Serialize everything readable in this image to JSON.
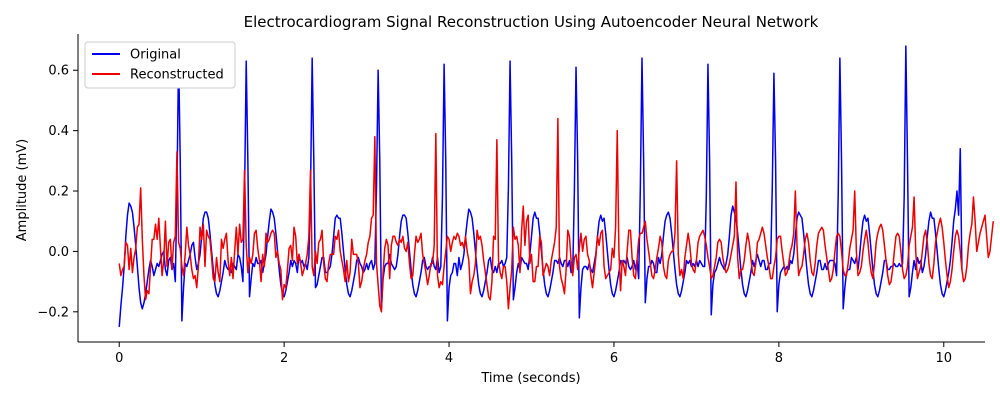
{
  "chart_data": {
    "type": "line",
    "title": "Electrocardiogram Signal Reconstruction Using Autoencoder Neural Network",
    "xlabel": "Time (seconds)",
    "ylabel": "Amplitude (mV)",
    "xlim": [
      -0.5,
      10.5
    ],
    "ylim": [
      -0.3,
      0.72
    ],
    "xticks": [
      0,
      2,
      4,
      6,
      8,
      10
    ],
    "yticks": [
      -0.2,
      0.0,
      0.2,
      0.4,
      0.6
    ],
    "xtick_labels": [
      "0",
      "2",
      "4",
      "6",
      "8",
      "10"
    ],
    "ytick_labels": [
      "−0.2",
      "0.0",
      "0.2",
      "0.4",
      "0.6"
    ],
    "grid": false,
    "legend_position": "top-left",
    "sampling_interval": 0.02,
    "series": [
      {
        "name": "Original",
        "color": "#0000ee",
        "values": [
          -0.25,
          -0.18,
          -0.12,
          -0.05,
          0.05,
          0.12,
          0.16,
          0.15,
          0.13,
          0.08,
          0.02,
          -0.05,
          -0.12,
          -0.17,
          -0.19,
          -0.17,
          -0.14,
          -0.1,
          -0.06,
          -0.03,
          -0.05,
          -0.08,
          -0.06,
          -0.04,
          -0.05,
          -0.03,
          -0.01,
          0.0,
          -0.06,
          -0.08,
          -0.03,
          -0.02,
          -0.06,
          -0.04,
          -0.1,
          0.2,
          0.65,
          0.3,
          -0.23,
          -0.12,
          -0.04,
          -0.05,
          -0.03,
          -0.01,
          0.02,
          0.03,
          -0.02,
          -0.06,
          -0.04,
          -0.01,
          0.05,
          0.11,
          0.13,
          0.13,
          0.11,
          0.06,
          0.0,
          -0.06,
          -0.11,
          -0.14,
          -0.15,
          -0.13,
          -0.1,
          -0.07,
          -0.03,
          -0.05,
          -0.06,
          -0.06,
          -0.07,
          -0.04,
          -0.05,
          -0.06,
          -0.01,
          -0.02,
          -0.05,
          -0.1,
          0.19,
          0.63,
          0.3,
          -0.15,
          -0.09,
          -0.04,
          -0.05,
          -0.02,
          -0.04,
          -0.04,
          -0.03,
          -0.07,
          -0.04,
          -0.01,
          0.05,
          0.1,
          0.14,
          0.13,
          0.11,
          0.06,
          0.0,
          -0.06,
          -0.11,
          -0.14,
          -0.15,
          -0.13,
          -0.1,
          -0.07,
          -0.03,
          -0.05,
          -0.03,
          -0.04,
          -0.07,
          -0.01,
          -0.04,
          -0.03,
          -0.05,
          -0.04,
          -0.06,
          -0.02,
          0.2,
          0.64,
          0.3,
          -0.12,
          -0.11,
          -0.08,
          -0.05,
          -0.02,
          -0.02,
          -0.07,
          -0.07,
          -0.06,
          -0.05,
          -0.01,
          0.05,
          0.11,
          0.12,
          0.11,
          0.11,
          0.06,
          0.0,
          -0.06,
          -0.11,
          -0.14,
          -0.15,
          -0.13,
          -0.1,
          -0.07,
          -0.03,
          -0.02,
          -0.04,
          -0.05,
          -0.07,
          -0.06,
          -0.04,
          -0.06,
          -0.04,
          -0.03,
          -0.06,
          -0.04,
          0.21,
          0.6,
          0.3,
          -0.19,
          -0.09,
          -0.05,
          -0.04,
          -0.04,
          -0.01,
          -0.04,
          -0.05,
          -0.06,
          -0.05,
          -0.01,
          0.05,
          0.1,
          0.12,
          0.12,
          0.11,
          0.06,
          0.0,
          -0.06,
          -0.11,
          -0.14,
          -0.15,
          -0.13,
          -0.1,
          -0.07,
          -0.03,
          -0.02,
          -0.05,
          -0.06,
          -0.05,
          -0.05,
          -0.02,
          -0.05,
          -0.06,
          -0.02,
          -0.07,
          -0.05,
          0.18,
          0.62,
          0.3,
          -0.23,
          -0.12,
          -0.08,
          -0.07,
          -0.04,
          -0.04,
          -0.08,
          -0.02,
          -0.06,
          -0.04,
          -0.01,
          0.05,
          0.1,
          0.14,
          0.13,
          0.11,
          0.06,
          0.0,
          -0.06,
          -0.11,
          -0.14,
          -0.15,
          -0.13,
          -0.1,
          -0.07,
          -0.03,
          -0.02,
          -0.06,
          -0.07,
          -0.05,
          -0.07,
          -0.04,
          -0.04,
          -0.03,
          -0.05,
          -0.04,
          -0.02,
          0.21,
          0.63,
          0.3,
          -0.16,
          -0.12,
          -0.07,
          -0.04,
          -0.06,
          -0.02,
          -0.03,
          -0.04,
          -0.04,
          -0.06,
          -0.01,
          0.05,
          0.11,
          0.13,
          0.11,
          0.11,
          0.06,
          0.0,
          -0.06,
          -0.11,
          -0.14,
          -0.15,
          -0.13,
          -0.1,
          -0.07,
          -0.03,
          -0.03,
          -0.04,
          -0.02,
          -0.04,
          -0.05,
          -0.03,
          -0.03,
          -0.05,
          -0.03,
          -0.07,
          -0.07,
          0.2,
          0.61,
          0.3,
          -0.22,
          -0.12,
          -0.06,
          -0.05,
          -0.05,
          -0.06,
          -0.04,
          -0.06,
          -0.07,
          -0.04,
          -0.01,
          0.05,
          0.1,
          0.12,
          0.1,
          0.11,
          0.06,
          0.0,
          -0.06,
          -0.11,
          -0.14,
          -0.15,
          -0.13,
          -0.1,
          -0.07,
          -0.03,
          -0.04,
          -0.03,
          -0.04,
          -0.02,
          -0.05,
          -0.06,
          -0.05,
          -0.03,
          -0.06,
          -0.03,
          -0.09,
          0.21,
          0.64,
          0.3,
          -0.17,
          -0.09,
          -0.05,
          -0.05,
          -0.03,
          -0.04,
          -0.07,
          -0.07,
          -0.02,
          -0.04,
          -0.01,
          0.05,
          0.1,
          0.12,
          0.13,
          0.11,
          0.06,
          0.0,
          -0.06,
          -0.11,
          -0.14,
          -0.15,
          -0.13,
          -0.1,
          -0.07,
          -0.03,
          -0.04,
          -0.03,
          -0.05,
          -0.04,
          -0.05,
          -0.03,
          -0.05,
          -0.03,
          -0.04,
          -0.05,
          -0.05,
          0.18,
          0.62,
          0.3,
          -0.21,
          -0.11,
          -0.07,
          -0.06,
          -0.04,
          -0.02,
          -0.04,
          -0.05,
          -0.06,
          -0.04,
          -0.01,
          0.05,
          0.12,
          0.15,
          0.13,
          0.11,
          0.06,
          0.0,
          -0.06,
          -0.11,
          -0.14,
          -0.15,
          -0.13,
          -0.1,
          -0.07,
          -0.03,
          -0.05,
          -0.03,
          -0.01,
          -0.03,
          -0.05,
          -0.03,
          -0.03,
          -0.06,
          -0.06,
          -0.04,
          -0.04,
          0.21,
          0.59,
          0.3,
          -0.2,
          -0.11,
          -0.07,
          -0.06,
          -0.05,
          -0.06,
          -0.05,
          -0.06,
          -0.03,
          -0.04,
          -0.01,
          0.05,
          0.11,
          0.13,
          0.12,
          0.11,
          0.06,
          0.0,
          -0.06,
          -0.11,
          -0.14,
          -0.15,
          -0.13,
          -0.1,
          -0.07,
          -0.03,
          -0.03,
          -0.06,
          -0.06,
          -0.04,
          -0.06,
          -0.04,
          -0.03,
          -0.03,
          -0.03,
          -0.04,
          -0.08,
          0.19,
          0.64,
          0.3,
          -0.19,
          -0.12,
          -0.07,
          -0.06,
          -0.06,
          -0.02,
          -0.03,
          -0.04,
          -0.02,
          -0.06,
          -0.01,
          0.05,
          0.1,
          0.12,
          0.1,
          0.11,
          0.06,
          0.0,
          -0.06,
          -0.11,
          -0.14,
          -0.15,
          -0.13,
          -0.1,
          -0.07,
          -0.03,
          -0.03,
          -0.06,
          -0.06,
          -0.05,
          -0.05,
          -0.04,
          -0.05,
          -0.05,
          -0.04,
          -0.05,
          -0.04,
          0.18,
          0.68,
          0.3,
          -0.15,
          -0.12,
          -0.07,
          -0.03,
          -0.06,
          -0.02,
          -0.04,
          -0.03,
          -0.07,
          -0.05,
          -0.01,
          0.05,
          0.1,
          0.13,
          0.11,
          0.11,
          0.06,
          0.0,
          -0.06,
          -0.11,
          -0.14,
          -0.15,
          -0.13,
          -0.1,
          -0.07,
          -0.03,
          0.03,
          0.1,
          0.14,
          0.2,
          0.12,
          0.34,
          -0.06
        ],
        "smoothing": "none"
      },
      {
        "name": "Reconstructed",
        "color": "#ee0000",
        "values": [
          -0.04,
          -0.08,
          -0.06,
          -0.05,
          0.03,
          0.02,
          -0.06,
          0.01,
          -0.07,
          -0.02,
          0.01,
          0.08,
          0.09,
          0.21,
          0.04,
          -0.08,
          -0.16,
          -0.13,
          -0.14,
          -0.05,
          0.04,
          0.04,
          0.09,
          0.04,
          0.11,
          0.01,
          -0.08,
          -0.03,
          0.1,
          -0.05,
          0.03,
          0.04,
          -0.06,
          0.03,
          0.05,
          0.33,
          0.03,
          0.01,
          -0.05,
          -0.08,
          -0.01,
          0.08,
          0.02,
          -0.01,
          -0.06,
          -0.09,
          -0.08,
          -0.12,
          -0.05,
          0.08,
          0.04,
          0.09,
          -0.05,
          0.07,
          0.05,
          0.04,
          -0.02,
          -0.09,
          -0.1,
          -0.02,
          -0.07,
          -0.1,
          0.04,
          0.01,
          0.04,
          0.06,
          -0.03,
          -0.08,
          -0.02,
          -0.09,
          0.0,
          0.08,
          -0.01,
          0.09,
          0.03,
          0.04,
          0.27,
          0.02,
          -0.07,
          -0.02,
          -0.04,
          -0.01,
          0.06,
          0.07,
          0.01,
          -0.03,
          -0.1,
          -0.01,
          -0.05,
          0.06,
          0.03,
          0.04,
          0.06,
          0.07,
          0.06,
          -0.02,
          0.0,
          -0.04,
          -0.06,
          -0.16,
          -0.11,
          -0.12,
          -0.06,
          0.01,
          0.02,
          -0.03,
          0.08,
          0.05,
          -0.04,
          -0.01,
          -0.04,
          -0.08,
          -0.06,
          -0.04,
          -0.01,
          0.05,
          0.27,
          -0.05,
          -0.08,
          0.0,
          -0.04,
          0.03,
          0.04,
          0.07,
          -0.04,
          -0.09,
          -0.1,
          -0.04,
          -0.01,
          -0.01,
          -0.01,
          0.05,
          0.04,
          0.07,
          0.0,
          -0.03,
          -0.06,
          -0.1,
          -0.03,
          -0.1,
          -0.07,
          0.04,
          -0.01,
          -0.01,
          -0.01,
          -0.04,
          -0.12,
          -0.1,
          -0.06,
          -0.03,
          -0.01,
          0.03,
          0.05,
          0.11,
          0.12,
          0.38,
          -0.04,
          -0.11,
          -0.18,
          -0.2,
          -0.07,
          0.01,
          0.04,
          0.02,
          -0.09,
          0.02,
          0.05,
          0.05,
          0.03,
          0.02,
          0.04,
          0.03,
          0.05,
          0.01,
          0.0,
          0.03,
          -0.04,
          -0.09,
          -0.08,
          -0.01,
          0.05,
          0.03,
          0.04,
          0.06,
          -0.01,
          -0.04,
          -0.07,
          -0.11,
          -0.08,
          -0.04,
          -0.04,
          0.02,
          0.39,
          -0.08,
          -0.12,
          -0.1,
          -0.11,
          -0.05,
          0.0,
          0.05,
          0.04,
          0.0,
          0.03,
          0.05,
          0.04,
          0.06,
          0.05,
          0.02,
          0.03,
          0.01,
          0.05,
          0.0,
          -0.03,
          -0.14,
          -0.1,
          -0.08,
          -0.04,
          0.07,
          0.04,
          0.05,
          0.02,
          -0.03,
          -0.07,
          -0.11,
          -0.15,
          -0.16,
          -0.1,
          0.05,
          0.04,
          0.37,
          -0.03,
          -0.07,
          -0.09,
          -0.05,
          -0.05,
          -0.1,
          -0.19,
          -0.12,
          -0.06,
          0.08,
          0.04,
          0.05,
          0.02,
          -0.07,
          0.07,
          0.15,
          0.02,
          0.1,
          0.12,
          -0.04,
          -0.01,
          -0.1,
          -0.1,
          -0.05,
          -0.05,
          0.05,
          0.03,
          -0.08,
          -0.06,
          -0.04,
          -0.05,
          -0.08,
          -0.03,
          0.0,
          0.03,
          0.08,
          0.44,
          -0.05,
          -0.09,
          -0.11,
          -0.14,
          -0.06,
          0.07,
          0.05,
          -0.03,
          -0.08,
          -0.02,
          -0.01,
          -0.06,
          0.01,
          0.06,
          0.0,
          0.04,
          0.05,
          -0.01,
          -0.03,
          -0.08,
          -0.12,
          -0.07,
          -0.02,
          0.05,
          0.02,
          0.06,
          0.07,
          -0.05,
          -0.09,
          -0.08,
          -0.07,
          -0.06,
          0.01,
          -0.02,
          0.08,
          0.4,
          0.0,
          -0.13,
          -0.03,
          -0.05,
          -0.08,
          0.0,
          0.07,
          0.07,
          -0.02,
          -0.08,
          -0.09,
          -0.03,
          0.04,
          0.06,
          0.06,
          0.08,
          0.1,
          0.04,
          0.0,
          -0.04,
          -0.08,
          -0.09,
          -0.06,
          -0.02,
          0.01,
          0.05,
          0.03,
          -0.05,
          -0.08,
          -0.09,
          -0.03,
          -0.01,
          0.0,
          0.0,
          0.06,
          0.3,
          -0.01,
          -0.08,
          -0.06,
          -0.09,
          -0.02,
          0.02,
          0.06,
          0.02,
          -0.04,
          -0.06,
          -0.07,
          -0.03,
          0.03,
          0.05,
          0.06,
          0.07,
          0.05,
          0.02,
          -0.02,
          -0.05,
          -0.09,
          -0.08,
          -0.05,
          -0.02,
          0.03,
          0.04,
          0.03,
          -0.02,
          -0.05,
          -0.07,
          -0.06,
          -0.04,
          -0.01,
          0.02,
          0.05,
          0.23,
          -0.02,
          -0.09,
          -0.06,
          -0.06,
          -0.03,
          0.02,
          0.06,
          0.03,
          -0.02,
          -0.07,
          -0.08,
          -0.04,
          0.03,
          0.04,
          0.06,
          0.08,
          0.06,
          0.02,
          -0.02,
          -0.05,
          -0.09,
          -0.09,
          -0.05,
          -0.02,
          0.04,
          0.05,
          0.05,
          0.0,
          -0.04,
          -0.08,
          -0.07,
          -0.04,
          0.0,
          0.02,
          0.06,
          0.2,
          0.02,
          -0.08,
          -0.06,
          -0.05,
          -0.01,
          0.04,
          0.06,
          0.03,
          -0.03,
          -0.07,
          -0.08,
          -0.04,
          0.02,
          0.06,
          0.07,
          0.08,
          0.07,
          0.02,
          -0.02,
          -0.06,
          -0.1,
          -0.09,
          -0.06,
          0.0,
          0.05,
          0.06,
          0.05,
          0.0,
          -0.06,
          -0.08,
          -0.08,
          -0.04,
          0.01,
          0.04,
          0.07,
          0.2,
          0.0,
          -0.08,
          -0.07,
          -0.05,
          0.0,
          0.04,
          0.07,
          0.03,
          -0.03,
          -0.07,
          -0.09,
          -0.04,
          0.03,
          0.06,
          0.08,
          0.09,
          0.07,
          0.02,
          -0.03,
          -0.08,
          -0.11,
          -0.1,
          -0.06,
          0.0,
          0.05,
          0.06,
          0.05,
          0.0,
          -0.06,
          -0.09,
          -0.08,
          -0.05,
          0.02,
          0.05,
          0.08,
          0.18,
          0.0,
          -0.09,
          -0.07,
          -0.05,
          0.0,
          0.05,
          0.07,
          0.03,
          -0.04,
          -0.08,
          -0.09,
          -0.04,
          0.03,
          0.06,
          0.09,
          0.11,
          0.08,
          0.03,
          -0.03,
          -0.08,
          -0.12,
          -0.1,
          -0.06,
          0.0,
          0.05,
          0.07,
          0.05,
          0.0,
          -0.06,
          -0.1,
          -0.09,
          -0.05,
          0.02,
          0.06,
          0.09,
          0.18,
          0.1,
          0.0,
          0.03,
          0.06,
          0.08,
          0.1,
          0.12,
          0.05,
          -0.02,
          0.0,
          0.05,
          0.1
        ],
        "smoothing": "none"
      }
    ]
  }
}
